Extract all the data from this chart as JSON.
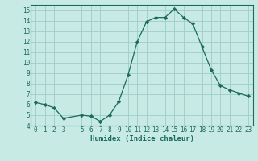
{
  "x": [
    0,
    1,
    2,
    3,
    5,
    6,
    7,
    8,
    9,
    10,
    11,
    12,
    13,
    14,
    15,
    16,
    17,
    18,
    19,
    20,
    21,
    22,
    23
  ],
  "y": [
    6.2,
    6.0,
    5.7,
    4.7,
    5.0,
    4.9,
    4.4,
    5.0,
    6.3,
    8.8,
    12.0,
    13.9,
    14.3,
    14.3,
    15.1,
    14.3,
    13.7,
    11.5,
    9.3,
    7.8,
    7.4,
    7.1,
    6.8
  ],
  "xlabel": "Humidex (Indice chaleur)",
  "xlim": [
    -0.5,
    23.5
  ],
  "ylim": [
    4,
    15.5
  ],
  "yticks": [
    4,
    5,
    6,
    7,
    8,
    9,
    10,
    11,
    12,
    13,
    14,
    15
  ],
  "xticks": [
    0,
    1,
    2,
    3,
    5,
    6,
    7,
    8,
    9,
    10,
    11,
    12,
    13,
    14,
    15,
    16,
    17,
    18,
    19,
    20,
    21,
    22,
    23
  ],
  "xtick_labels": [
    "0",
    "1",
    "2",
    "3",
    "5",
    "6",
    "7",
    "8",
    "9",
    "10",
    "11",
    "12",
    "13",
    "14",
    "15",
    "16",
    "17",
    "18",
    "19",
    "20",
    "21",
    "22",
    "23"
  ],
  "line_color": "#1a6b5a",
  "marker": "D",
  "marker_size": 2.2,
  "bg_color": "#c8eae4",
  "grid_color": "#9dcec7",
  "fig_bg": "#c8eae4",
  "tick_color": "#1a6b5a",
  "label_color": "#1a6b5a",
  "xlabel_fontsize": 6.5,
  "tick_fontsize": 5.5
}
